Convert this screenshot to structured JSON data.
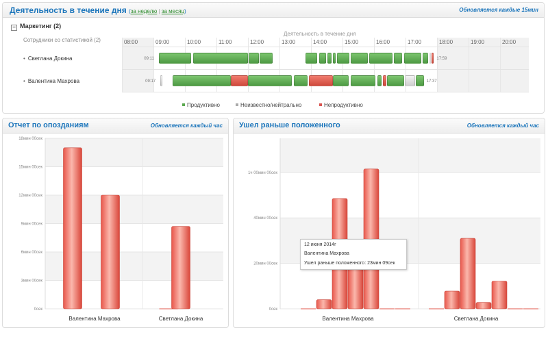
{
  "activity": {
    "title": "Деятельность в течение дня",
    "link_week": "за неделю",
    "link_sep": "|",
    "link_month": "за месяц",
    "refresh_note": "Обновляется каждые 15мин",
    "group_toggle": "−",
    "group_label": "Маркетинг (2)",
    "employees_header": "Сотрудники со статистикой (2)",
    "timeline_header": "Деятельность в течение дня",
    "hours": [
      "08:00",
      "09:00",
      "10:00",
      "11:00",
      "12:00",
      "13:00",
      "14:00",
      "15:00",
      "16:00",
      "17:00",
      "18:00",
      "19:00",
      "20:00"
    ],
    "employees": [
      {
        "name": "Светлана  Докина",
        "start": "09:11",
        "end": "17:59",
        "segments": [
          {
            "from": 9.18,
            "to": 10.2,
            "type": "prod"
          },
          {
            "from": 10.27,
            "to": 12.0,
            "type": "prod"
          },
          {
            "from": 12.03,
            "to": 12.35,
            "type": "prod"
          },
          {
            "from": 12.38,
            "to": 12.78,
            "type": "prod"
          },
          {
            "from": 13.82,
            "to": 14.2,
            "type": "prod"
          },
          {
            "from": 14.25,
            "to": 14.48,
            "type": "prod"
          },
          {
            "from": 14.52,
            "to": 14.65,
            "type": "prod"
          },
          {
            "from": 14.7,
            "to": 14.78,
            "type": "prod"
          },
          {
            "from": 14.83,
            "to": 15.22,
            "type": "prod"
          },
          {
            "from": 15.27,
            "to": 15.8,
            "type": "prod"
          },
          {
            "from": 15.85,
            "to": 16.58,
            "type": "prod"
          },
          {
            "from": 16.63,
            "to": 16.9,
            "type": "prod"
          },
          {
            "from": 16.95,
            "to": 17.5,
            "type": "prod"
          },
          {
            "from": 17.55,
            "to": 17.72,
            "type": "prod"
          },
          {
            "from": 17.76,
            "to": 17.8,
            "type": "neutral"
          },
          {
            "from": 17.82,
            "to": 17.9,
            "type": "unprod"
          }
        ]
      },
      {
        "name": "Валентина Махрова",
        "start": "09:17",
        "end": "17:37",
        "segments": [
          {
            "from": 9.22,
            "to": 9.28,
            "type": "neutral"
          },
          {
            "from": 9.6,
            "to": 11.45,
            "type": "prod"
          },
          {
            "from": 11.45,
            "to": 12.0,
            "type": "unprod"
          },
          {
            "from": 12.0,
            "to": 13.4,
            "type": "prod"
          },
          {
            "from": 13.45,
            "to": 13.9,
            "type": "prod"
          },
          {
            "from": 13.93,
            "to": 14.7,
            "type": "unprod"
          },
          {
            "from": 14.7,
            "to": 15.2,
            "type": "prod"
          },
          {
            "from": 15.25,
            "to": 16.05,
            "type": "prod"
          },
          {
            "from": 16.1,
            "to": 16.25,
            "type": "prod"
          },
          {
            "from": 16.28,
            "to": 16.4,
            "type": "unprod"
          },
          {
            "from": 16.42,
            "to": 16.95,
            "type": "prod"
          },
          {
            "from": 16.98,
            "to": 17.3,
            "type": "neutral"
          },
          {
            "from": 17.32,
            "to": 17.58,
            "type": "prod"
          }
        ]
      }
    ],
    "legend": {
      "productive": "Продуктивно",
      "neutral": "Неизвестно/нейтрально",
      "unproductive": "Непродуктивно"
    },
    "colors": {
      "productive": "#5aa84f",
      "neutral": "#aaaaaa",
      "unproductive": "#d9534f"
    }
  },
  "late": {
    "title": "Отчет по опозданиям",
    "refresh_note": "Обновляется каждый час"
  },
  "early": {
    "title": "Ушел раньше положенного",
    "refresh_note": "Обновляется каждый час"
  },
  "tooltip": {
    "date": "12 июня 2014г",
    "name": "Валентина Махрова",
    "value": "Ушел раньше положенного: 23мин 09сек"
  },
  "chart_data": [
    {
      "type": "bar",
      "title": "Отчет по опозданиям",
      "unit": "минуты",
      "ylim": [
        0,
        18
      ],
      "yticks": [
        0,
        3,
        6,
        9,
        12,
        15,
        18
      ],
      "ytick_labels": [
        "0сек",
        "3мин 00сек",
        "6мин 00сек",
        "9мин 00сек",
        "12мин 00сек",
        "15мин 00сек",
        "18мин 00сек"
      ],
      "categories": [
        "Валентина Махрова",
        "Светлана  Докина"
      ],
      "series_values": [
        [
          17.0,
          12.0
        ],
        [
          0,
          8.7
        ]
      ],
      "grid": true,
      "legend": "none"
    },
    {
      "type": "bar",
      "title": "Ушел раньше положенного",
      "unit": "минуты",
      "ylim": [
        0,
        75
      ],
      "yticks": [
        0,
        20,
        40,
        60
      ],
      "ytick_labels": [
        "0сек",
        "20мин 00сек",
        "40мин 00сек",
        "1ч 00мин 00сек"
      ],
      "categories": [
        "Валентина Махрова",
        "Светлана  Докина"
      ],
      "groups": [
        [
          0.2,
          4.0,
          48.5,
          23.15,
          61.5,
          0.2,
          0.2
        ],
        [
          0.2,
          7.8,
          31.0,
          2.8,
          12.2,
          0.2,
          0.2
        ]
      ],
      "grid": true,
      "legend": "none"
    }
  ]
}
